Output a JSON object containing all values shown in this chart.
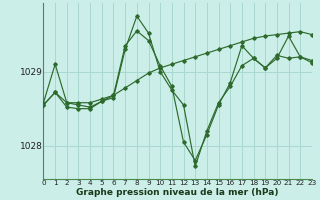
{
  "xlabel": "Graphe pression niveau de la mer (hPa)",
  "bg_color": "#cceee8",
  "grid_color": "#a8d8d0",
  "line_color": "#2d6a2d",
  "hours": [
    0,
    1,
    2,
    3,
    4,
    5,
    6,
    7,
    8,
    9,
    10,
    11,
    12,
    13,
    14,
    15,
    16,
    17,
    18,
    19,
    20,
    21,
    22,
    23
  ],
  "series1": [
    1028.55,
    1028.72,
    1028.58,
    1028.58,
    1028.58,
    1028.63,
    1028.68,
    1028.78,
    1028.88,
    1028.98,
    1029.05,
    1029.1,
    1029.15,
    1029.2,
    1029.25,
    1029.3,
    1029.35,
    1029.4,
    1029.45,
    1029.48,
    1029.5,
    1029.52,
    1029.54,
    1029.5
  ],
  "series2": [
    1028.58,
    1029.1,
    1028.58,
    1028.55,
    1028.52,
    1028.6,
    1028.68,
    1029.35,
    1029.55,
    1029.42,
    1029.08,
    1028.8,
    1028.05,
    1027.8,
    1028.15,
    1028.55,
    1028.85,
    1029.35,
    1029.18,
    1029.05,
    1029.22,
    1029.18,
    1029.2,
    1029.12
  ],
  "series3": [
    1028.55,
    1028.72,
    1028.52,
    1028.5,
    1028.5,
    1028.6,
    1028.65,
    1029.3,
    1029.75,
    1029.52,
    1029.0,
    1028.75,
    1028.55,
    1027.72,
    1028.2,
    1028.58,
    1028.8,
    1029.08,
    1029.18,
    1029.05,
    1029.18,
    1029.48,
    1029.2,
    1029.15
  ],
  "ylim_min": 1027.55,
  "ylim_max": 1029.92,
  "yticks": [
    1028,
    1029
  ],
  "xlim_min": 0,
  "xlim_max": 23
}
